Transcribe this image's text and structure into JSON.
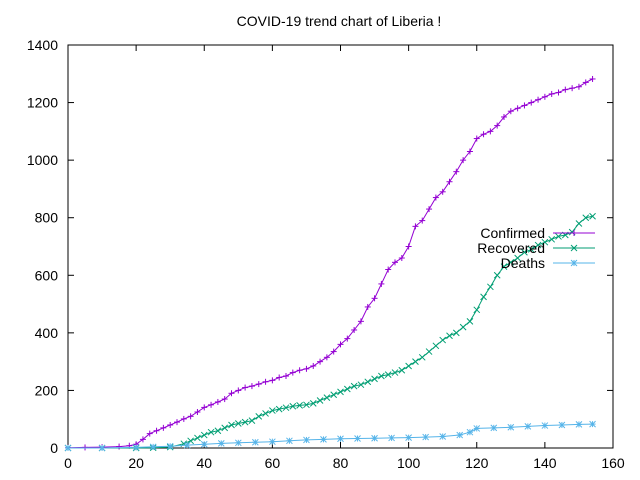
{
  "chart_data": {
    "type": "line",
    "title": "COVID-19 trend chart of Liberia !",
    "xlabel": "",
    "ylabel": "",
    "xlim": [
      0,
      160
    ],
    "ylim": [
      0,
      1400
    ],
    "xticks": [
      0,
      20,
      40,
      60,
      80,
      100,
      120,
      140,
      160
    ],
    "yticks": [
      0,
      200,
      400,
      600,
      800,
      1000,
      1200,
      1400
    ],
    "grid": false,
    "legend_position": "right",
    "series": [
      {
        "name": "Confirmed",
        "color": "#9400d3",
        "marker": "plus",
        "points": [
          [
            0,
            1
          ],
          [
            5,
            2
          ],
          [
            10,
            3
          ],
          [
            15,
            5
          ],
          [
            18,
            8
          ],
          [
            20,
            13
          ],
          [
            22,
            30
          ],
          [
            24,
            50
          ],
          [
            26,
            60
          ],
          [
            28,
            70
          ],
          [
            30,
            80
          ],
          [
            32,
            90
          ],
          [
            34,
            101
          ],
          [
            36,
            110
          ],
          [
            38,
            125
          ],
          [
            40,
            141
          ],
          [
            42,
            150
          ],
          [
            44,
            160
          ],
          [
            46,
            170
          ],
          [
            48,
            190
          ],
          [
            50,
            200
          ],
          [
            52,
            210
          ],
          [
            54,
            215
          ],
          [
            56,
            222
          ],
          [
            58,
            230
          ],
          [
            60,
            235
          ],
          [
            62,
            245
          ],
          [
            64,
            250
          ],
          [
            66,
            262
          ],
          [
            68,
            270
          ],
          [
            70,
            275
          ],
          [
            72,
            285
          ],
          [
            74,
            300
          ],
          [
            76,
            315
          ],
          [
            78,
            335
          ],
          [
            80,
            360
          ],
          [
            82,
            380
          ],
          [
            84,
            410
          ],
          [
            86,
            440
          ],
          [
            88,
            490
          ],
          [
            90,
            520
          ],
          [
            92,
            570
          ],
          [
            94,
            620
          ],
          [
            96,
            645
          ],
          [
            98,
            660
          ],
          [
            100,
            700
          ],
          [
            102,
            770
          ],
          [
            104,
            790
          ],
          [
            106,
            830
          ],
          [
            108,
            870
          ],
          [
            110,
            890
          ],
          [
            112,
            925
          ],
          [
            114,
            960
          ],
          [
            116,
            1000
          ],
          [
            118,
            1030
          ],
          [
            120,
            1075
          ],
          [
            122,
            1090
          ],
          [
            124,
            1100
          ],
          [
            126,
            1120
          ],
          [
            128,
            1150
          ],
          [
            130,
            1170
          ],
          [
            132,
            1180
          ],
          [
            134,
            1190
          ],
          [
            136,
            1200
          ],
          [
            138,
            1210
          ],
          [
            140,
            1220
          ],
          [
            142,
            1230
          ],
          [
            144,
            1235
          ],
          [
            146,
            1245
          ],
          [
            148,
            1250
          ],
          [
            150,
            1255
          ],
          [
            152,
            1270
          ],
          [
            154,
            1282
          ]
        ]
      },
      {
        "name": "Recovered",
        "color": "#009e73",
        "marker": "x",
        "points": [
          [
            0,
            0
          ],
          [
            10,
            0
          ],
          [
            20,
            0
          ],
          [
            25,
            1
          ],
          [
            30,
            3
          ],
          [
            34,
            15
          ],
          [
            36,
            25
          ],
          [
            38,
            35
          ],
          [
            40,
            45
          ],
          [
            42,
            55
          ],
          [
            44,
            60
          ],
          [
            46,
            70
          ],
          [
            48,
            80
          ],
          [
            50,
            85
          ],
          [
            52,
            90
          ],
          [
            54,
            95
          ],
          [
            56,
            110
          ],
          [
            58,
            120
          ],
          [
            60,
            130
          ],
          [
            62,
            135
          ],
          [
            64,
            140
          ],
          [
            66,
            145
          ],
          [
            68,
            148
          ],
          [
            70,
            150
          ],
          [
            72,
            155
          ],
          [
            74,
            165
          ],
          [
            76,
            175
          ],
          [
            78,
            185
          ],
          [
            80,
            195
          ],
          [
            82,
            205
          ],
          [
            84,
            215
          ],
          [
            86,
            220
          ],
          [
            88,
            230
          ],
          [
            90,
            240
          ],
          [
            92,
            250
          ],
          [
            94,
            255
          ],
          [
            96,
            262
          ],
          [
            98,
            270
          ],
          [
            100,
            285
          ],
          [
            102,
            300
          ],
          [
            104,
            315
          ],
          [
            106,
            335
          ],
          [
            108,
            355
          ],
          [
            110,
            375
          ],
          [
            112,
            390
          ],
          [
            114,
            400
          ],
          [
            116,
            420
          ],
          [
            118,
            440
          ],
          [
            120,
            480
          ],
          [
            122,
            525
          ],
          [
            124,
            560
          ],
          [
            126,
            600
          ],
          [
            128,
            630
          ],
          [
            130,
            645
          ],
          [
            132,
            660
          ],
          [
            134,
            680
          ],
          [
            136,
            690
          ],
          [
            138,
            705
          ],
          [
            140,
            715
          ],
          [
            142,
            725
          ],
          [
            144,
            735
          ],
          [
            146,
            740
          ],
          [
            148,
            750
          ],
          [
            150,
            780
          ],
          [
            152,
            800
          ],
          [
            154,
            805
          ]
        ]
      },
      {
        "name": "Deaths",
        "color": "#56b4e9",
        "marker": "star",
        "points": [
          [
            0,
            0
          ],
          [
            10,
            0
          ],
          [
            20,
            2
          ],
          [
            25,
            4
          ],
          [
            30,
            6
          ],
          [
            35,
            10
          ],
          [
            40,
            13
          ],
          [
            45,
            16
          ],
          [
            50,
            18
          ],
          [
            55,
            20
          ],
          [
            60,
            22
          ],
          [
            65,
            25
          ],
          [
            70,
            28
          ],
          [
            75,
            30
          ],
          [
            80,
            32
          ],
          [
            85,
            33
          ],
          [
            90,
            34
          ],
          [
            95,
            35
          ],
          [
            100,
            36
          ],
          [
            105,
            38
          ],
          [
            110,
            40
          ],
          [
            115,
            45
          ],
          [
            118,
            55
          ],
          [
            120,
            68
          ],
          [
            125,
            70
          ],
          [
            130,
            72
          ],
          [
            135,
            75
          ],
          [
            140,
            78
          ],
          [
            145,
            80
          ],
          [
            150,
            82
          ],
          [
            154,
            83
          ]
        ]
      }
    ]
  }
}
